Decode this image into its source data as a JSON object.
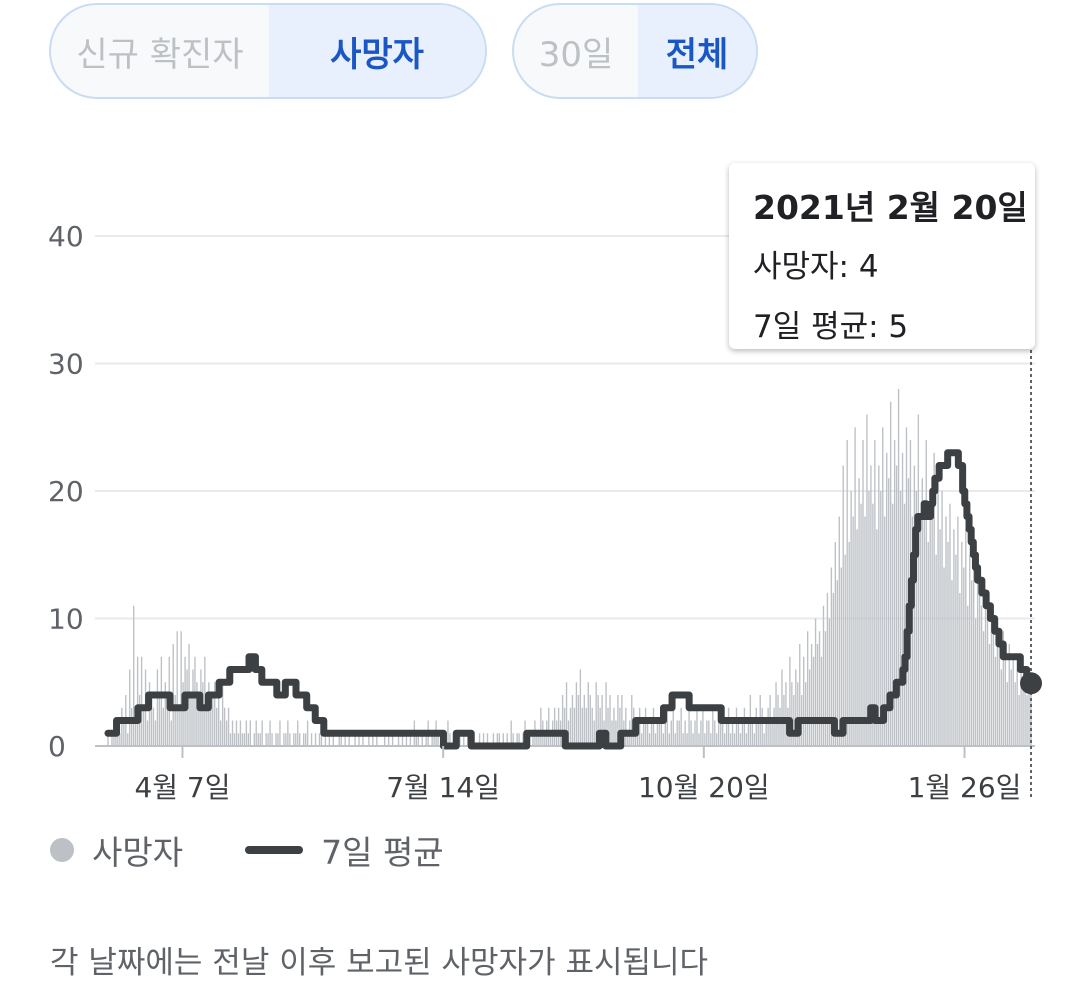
{
  "controls": {
    "metric": [
      {
        "label": "신규 확진자",
        "active": false
      },
      {
        "label": "사망자",
        "active": true
      }
    ],
    "range": [
      {
        "label": "30일",
        "active": false
      },
      {
        "label": "전체",
        "active": true
      }
    ]
  },
  "tooltip": {
    "date": "2021년 2월 20일",
    "deaths_line": "사망자: 4",
    "avg_line": "7일 평균: 5"
  },
  "legend": {
    "bars": "사망자",
    "line": "7일 평균"
  },
  "footnote": "각 날짜에는 전날 이후 보고된 사망자가 표시됩니다",
  "colors": {
    "bar": "#bdc1c6",
    "line": "#3c4043",
    "accent": "#1a56c4"
  },
  "chart_data": {
    "type": "bar",
    "title": "",
    "xlabel": "",
    "ylabel": "",
    "ylim": [
      0,
      45
    ],
    "yticks": [
      0,
      10,
      20,
      30,
      40
    ],
    "grid": true,
    "legend_position": "bottom-left",
    "x_start": "2020-03-10",
    "x_end": "2021-02-20",
    "xticks": [
      {
        "date": "2020-04-07",
        "label": "4월 7일"
      },
      {
        "date": "2020-07-14",
        "label": "7월 14일"
      },
      {
        "date": "2020-10-20",
        "label": "10월 20일"
      },
      {
        "date": "2021-01-26",
        "label": "1월 26일"
      }
    ],
    "highlight": {
      "date": "2021-02-20",
      "deaths": 4,
      "avg": 5
    },
    "series": [
      {
        "name": "사망자",
        "type": "bar",
        "values": [
          1,
          0,
          1,
          2,
          1,
          2,
          1,
          3,
          2,
          4,
          1,
          6,
          3,
          11,
          2,
          7,
          4,
          7,
          3,
          6,
          2,
          5,
          4,
          3,
          2,
          6,
          4,
          7,
          3,
          5,
          3,
          7,
          2,
          8,
          4,
          9,
          3,
          9,
          5,
          7,
          6,
          8,
          4,
          6,
          7,
          5,
          3,
          6,
          5,
          7,
          4,
          5,
          3,
          4,
          5,
          3,
          4,
          2,
          5,
          3,
          2,
          3,
          1,
          2,
          1,
          2,
          1,
          2,
          1,
          1,
          2,
          1,
          2,
          0,
          1,
          2,
          1,
          1,
          2,
          0,
          1,
          1,
          2,
          1,
          0,
          1,
          1,
          2,
          0,
          1,
          1,
          2,
          1,
          0,
          1,
          1,
          2,
          1,
          0,
          1,
          1,
          2,
          0,
          1,
          0,
          1,
          0,
          1,
          1,
          0,
          2,
          0,
          1,
          0,
          1,
          0,
          0,
          1,
          1,
          0,
          1,
          0,
          1,
          0,
          0,
          1,
          0,
          1,
          0,
          1,
          0,
          0,
          1,
          0,
          1,
          0,
          1,
          0,
          0,
          0,
          1,
          0,
          1,
          0,
          1,
          0,
          0,
          1,
          0,
          1,
          0,
          1,
          0,
          1,
          0,
          2,
          1,
          1,
          0,
          1,
          0,
          1,
          2,
          0,
          1,
          1,
          2,
          1,
          0,
          1,
          0,
          1,
          2,
          1,
          0,
          1,
          1,
          0,
          1,
          0,
          1,
          0,
          1,
          1,
          0,
          1,
          0,
          0,
          1,
          0,
          1,
          0,
          1,
          0,
          0,
          1,
          0,
          1,
          1,
          0,
          1,
          0,
          1,
          0,
          2,
          1,
          0,
          1,
          1,
          0,
          1,
          2,
          1,
          1,
          0,
          1,
          2,
          1,
          1,
          3,
          2,
          1,
          2,
          3,
          1,
          2,
          3,
          2,
          3,
          2,
          4,
          3,
          5,
          2,
          3,
          4,
          3,
          5,
          4,
          6,
          3,
          4,
          3,
          5,
          4,
          3,
          2,
          5,
          4,
          3,
          4,
          2,
          5,
          3,
          4,
          2,
          3,
          2,
          4,
          3,
          4,
          2,
          3,
          1,
          2,
          4,
          3,
          1,
          2,
          3,
          1,
          2,
          3,
          2,
          1,
          2,
          3,
          1,
          2,
          2,
          3,
          1,
          2,
          3,
          1,
          2,
          3,
          1,
          2,
          2,
          3,
          1,
          2,
          1,
          3,
          2,
          1,
          2,
          3,
          1,
          2,
          3,
          1,
          2,
          2,
          1,
          3,
          2,
          1,
          2,
          3,
          2,
          1,
          2,
          3,
          1,
          2,
          1,
          3,
          2,
          1,
          2,
          3,
          1,
          2,
          4,
          2,
          1,
          3,
          2,
          4,
          3,
          1,
          2,
          3,
          4,
          2,
          3,
          5,
          4,
          3,
          6,
          4,
          5,
          3,
          7,
          5,
          4,
          6,
          5,
          8,
          4,
          7,
          5,
          9,
          6,
          8,
          7,
          10,
          8,
          9,
          7,
          11,
          9,
          12,
          10,
          14,
          12,
          16,
          13,
          18,
          14,
          22,
          15,
          24,
          16,
          20,
          18,
          25,
          17,
          21,
          19,
          24,
          18,
          26,
          20,
          22,
          19,
          24,
          17,
          22,
          20,
          25,
          18,
          23,
          21,
          27,
          19,
          24,
          22,
          28,
          20,
          23,
          19,
          25,
          21,
          24,
          18,
          22,
          20,
          26,
          17,
          21,
          19,
          24,
          16,
          20,
          18,
          23,
          15,
          21,
          17,
          20,
          14,
          18,
          16,
          19,
          13,
          17,
          15,
          18,
          12,
          16,
          14,
          17,
          11,
          15,
          13,
          14,
          10,
          13,
          12,
          11,
          9,
          12,
          10,
          8,
          11,
          9,
          7,
          10,
          8,
          6,
          9,
          7,
          5,
          8,
          6,
          7,
          5,
          6,
          4,
          7,
          5,
          6,
          4,
          5,
          4
        ]
      },
      {
        "name": "7일 평균",
        "type": "line",
        "values": [
          1,
          1,
          1,
          1,
          2,
          2,
          2,
          2,
          2,
          2,
          2,
          2,
          2,
          2,
          3,
          3,
          3,
          3,
          3,
          4,
          4,
          4,
          4,
          4,
          4,
          4,
          4,
          4,
          4,
          3,
          3,
          3,
          3,
          3,
          3,
          3,
          4,
          4,
          4,
          4,
          4,
          4,
          4,
          3,
          3,
          3,
          3,
          4,
          4,
          4,
          4,
          4,
          5,
          5,
          5,
          5,
          5,
          6,
          6,
          6,
          6,
          6,
          6,
          6,
          6,
          6,
          7,
          7,
          7,
          6,
          6,
          6,
          5,
          5,
          5,
          5,
          5,
          5,
          5,
          4,
          4,
          4,
          4,
          5,
          5,
          5,
          5,
          5,
          4,
          4,
          4,
          4,
          4,
          3,
          3,
          3,
          3,
          2,
          2,
          2,
          2,
          1,
          1,
          1,
          1,
          1,
          1,
          1,
          1,
          1,
          1,
          1,
          1,
          1,
          1,
          1,
          1,
          1,
          1,
          1,
          1,
          1,
          1,
          1,
          1,
          1,
          1,
          1,
          1,
          1,
          1,
          1,
          1,
          1,
          1,
          1,
          1,
          1,
          1,
          1,
          1,
          1,
          1,
          1,
          1,
          1,
          1,
          1,
          1,
          1,
          1,
          1,
          1,
          1,
          1,
          1,
          1,
          0,
          0,
          0,
          0,
          0,
          0,
          1,
          1,
          1,
          1,
          1,
          1,
          1,
          0,
          0,
          0,
          0,
          0,
          0,
          0,
          0,
          0,
          0,
          0,
          0,
          0,
          0,
          0,
          0,
          0,
          0,
          0,
          0,
          0,
          0,
          0,
          0,
          0,
          0,
          1,
          1,
          1,
          1,
          1,
          1,
          1,
          1,
          1,
          1,
          1,
          1,
          1,
          1,
          1,
          1,
          1,
          1,
          0,
          0,
          0,
          0,
          0,
          0,
          0,
          0,
          0,
          0,
          0,
          0,
          0,
          0,
          0,
          0,
          1,
          1,
          1,
          0,
          0,
          0,
          0,
          0,
          0,
          0,
          1,
          1,
          1,
          1,
          1,
          1,
          1,
          2,
          2,
          2,
          2,
          2,
          2,
          2,
          2,
          2,
          2,
          2,
          2,
          2,
          3,
          3,
          3,
          3,
          4,
          4,
          4,
          4,
          4,
          4,
          4,
          4,
          3,
          3,
          3,
          3,
          3,
          3,
          3,
          3,
          3,
          3,
          3,
          3,
          3,
          3,
          3,
          2,
          2,
          2,
          2,
          2,
          2,
          2,
          2,
          2,
          2,
          2,
          2,
          2,
          2,
          2,
          2,
          2,
          2,
          2,
          2,
          2,
          2,
          2,
          2,
          2,
          2,
          2,
          2,
          2,
          2,
          2,
          2,
          1,
          1,
          1,
          1,
          2,
          2,
          2,
          2,
          2,
          2,
          2,
          2,
          2,
          2,
          2,
          2,
          2,
          2,
          2,
          2,
          2,
          1,
          1,
          1,
          1,
          2,
          2,
          2,
          2,
          2,
          2,
          2,
          2,
          2,
          2,
          2,
          2,
          2,
          3,
          3,
          2,
          2,
          2,
          2,
          3,
          3,
          3,
          4,
          4,
          4,
          5,
          5,
          5,
          6,
          7,
          9,
          11,
          13,
          15,
          17,
          18,
          18,
          18,
          19,
          18,
          18,
          19,
          20,
          21,
          21,
          22,
          22,
          22,
          22,
          23,
          23,
          23,
          23,
          23,
          22,
          22,
          20,
          19,
          18,
          17,
          16,
          15,
          14,
          13,
          13,
          12,
          12,
          11,
          11,
          10,
          10,
          9,
          9,
          8,
          8,
          7,
          7,
          7,
          7,
          7,
          7,
          7,
          7,
          6,
          6,
          6,
          5,
          5,
          5
        ]
      }
    ]
  }
}
